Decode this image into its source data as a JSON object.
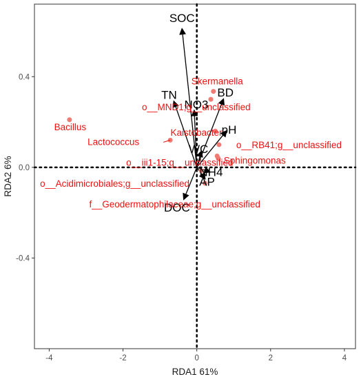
{
  "chart_data": {
    "type": "scatter",
    "subtype": "RDA biplot",
    "xlabel": "RDA1 61%",
    "ylabel": "RDA2 6%",
    "xlim": [
      -4.4,
      4.3
    ],
    "ylim": [
      -0.8,
      0.72
    ],
    "xticks": [
      -4,
      -2,
      0,
      2,
      4
    ],
    "yticks": [
      -0.4,
      0.0,
      0.4
    ],
    "xtick_labels": [
      "-4",
      "-2",
      "0",
      "2",
      "4"
    ],
    "ytick_labels": [
      "-0.4",
      "0.0",
      "0.4"
    ],
    "grid": false,
    "legend": "none",
    "reference_lines": {
      "x": 0,
      "y": 0,
      "style": "dotted"
    },
    "colors": {
      "species_points": "#f07b73",
      "species_labels": "#ee1111",
      "vectors": "#000000",
      "frame": "#333333"
    },
    "environmental_vectors": [
      {
        "name": "SOC",
        "x": -0.4,
        "y": 0.61
      },
      {
        "name": "TN",
        "x": -0.62,
        "y": 0.29
      },
      {
        "name": "NO3",
        "x": -0.07,
        "y": 0.25
      },
      {
        "name": "BD",
        "x": 0.72,
        "y": 0.3
      },
      {
        "name": "pH",
        "x": 0.8,
        "y": 0.16
      },
      {
        "name": "WC",
        "x": 0.12,
        "y": 0.07
      },
      {
        "name": "NH4",
        "x": 0.35,
        "y": -0.02
      },
      {
        "name": "AP",
        "x": 0.22,
        "y": -0.05
      },
      {
        "name": "DOC",
        "x": -0.35,
        "y": -0.14
      }
    ],
    "species": [
      {
        "name": "Skermanella",
        "x": 0.45,
        "y": 0.335
      },
      {
        "name": "o__MND1;g__unclassified",
        "x": 0.38,
        "y": 0.3
      },
      {
        "name": "Kaistobacter",
        "x": 0.5,
        "y": 0.16
      },
      {
        "name": "Bacillus",
        "x": -3.45,
        "y": 0.21
      },
      {
        "name": "Lactococcus",
        "x": -0.72,
        "y": 0.12
      },
      {
        "name": "o__iii1-15;g__unclassified",
        "x": 0.55,
        "y": 0.05
      },
      {
        "name": "o__RB41;g__unclassified",
        "x": 0.6,
        "y": 0.1
      },
      {
        "name": "Sphingomonas",
        "x": 0.58,
        "y": 0.04
      },
      {
        "name": "o__Acidimicrobiales;g__unclassified",
        "x": 0.12,
        "y": -0.015
      },
      {
        "name": "f__Geodermatophilaceae;g__unclassified",
        "x": 0.22,
        "y": -0.07
      }
    ]
  }
}
